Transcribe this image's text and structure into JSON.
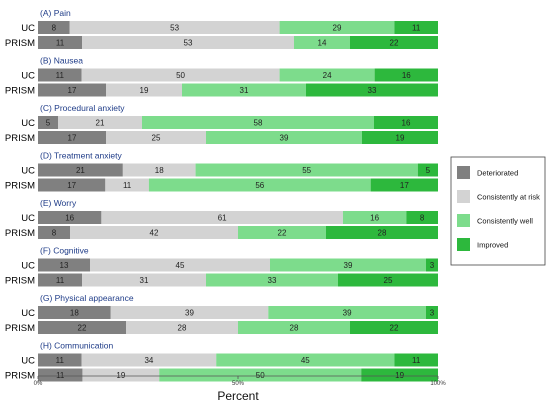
{
  "chart_data": {
    "type": "bar",
    "orientation": "horizontal-stacked-100",
    "xlabel": "Percent",
    "xlim": [
      0,
      100
    ],
    "x_ticks": [
      "0%",
      "50%",
      "100%"
    ],
    "row_labels": [
      "UC",
      "PRISM"
    ],
    "legend": {
      "placement": "right",
      "entries": [
        {
          "name": "Deteriorated",
          "color": "#808080"
        },
        {
          "name": "Consistently at risk",
          "color": "#d3d3d3"
        },
        {
          "name": "Consistently well",
          "color": "#7ddc8c"
        },
        {
          "name": "Improved",
          "color": "#2db83d"
        }
      ]
    },
    "panels": [
      {
        "title": "(A) Pain",
        "UC": [
          8,
          53,
          29,
          11
        ],
        "PRISM": [
          11,
          53,
          14,
          22
        ]
      },
      {
        "title": "(B) Nausea",
        "UC": [
          11,
          50,
          24,
          16
        ],
        "PRISM": [
          17,
          19,
          31,
          33
        ]
      },
      {
        "title": "(C) Procedural anxiety",
        "UC": [
          5,
          21,
          58,
          16
        ],
        "PRISM": [
          17,
          25,
          39,
          19
        ]
      },
      {
        "title": "(D) Treatment anxiety",
        "UC": [
          21,
          18,
          55,
          5
        ],
        "PRISM": [
          17,
          11,
          56,
          17
        ]
      },
      {
        "title": "(E) Worry",
        "UC": [
          16,
          61,
          16,
          8
        ],
        "PRISM": [
          8,
          42,
          22,
          28
        ]
      },
      {
        "title": "(F) Cognitive",
        "UC": [
          13,
          45,
          39,
          3
        ],
        "PRISM": [
          11,
          31,
          33,
          25
        ]
      },
      {
        "title": "(G) Physical appearance",
        "UC": [
          18,
          39,
          39,
          3
        ],
        "PRISM": [
          22,
          28,
          28,
          22
        ]
      },
      {
        "title": "(H) Communication",
        "UC": [
          11,
          34,
          45,
          11
        ],
        "PRISM": [
          11,
          19,
          50,
          19
        ]
      }
    ]
  }
}
